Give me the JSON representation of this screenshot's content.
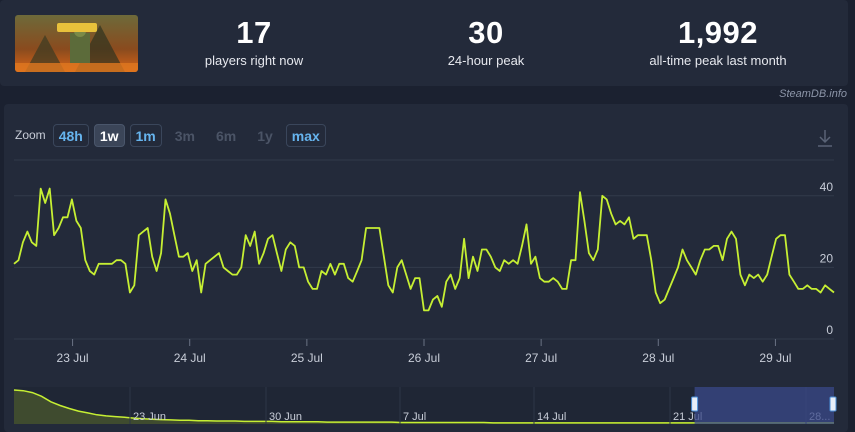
{
  "stats": [
    {
      "value": "17",
      "label": "players right now"
    },
    {
      "value": "30",
      "label": "24-hour peak"
    },
    {
      "value": "1,992",
      "label": "all-time peak last month"
    }
  ],
  "credit": "SteamDB.info",
  "zoom": {
    "label": "Zoom",
    "buttons": [
      {
        "label": "48h",
        "state": "on"
      },
      {
        "label": "1w",
        "state": "sel"
      },
      {
        "label": "1m",
        "state": "on"
      },
      {
        "label": "3m",
        "state": "off"
      },
      {
        "label": "6m",
        "state": "off"
      },
      {
        "label": "1y",
        "state": "off"
      },
      {
        "label": "max",
        "state": "on"
      }
    ]
  },
  "colors": {
    "line": "#c6ef33",
    "grid": "#323a4b",
    "navigator_selection": "#3b4a8a"
  },
  "chart_data": [
    {
      "type": "line",
      "title": "",
      "xlabel": "",
      "ylabel": "",
      "ylim": [
        0,
        50
      ],
      "yticks": [
        0,
        20,
        40
      ],
      "xlim": [
        0,
        7.0
      ],
      "x_ticks": [
        {
          "x": 0.5,
          "label": "23 Jul"
        },
        {
          "x": 1.5,
          "label": "24 Jul"
        },
        {
          "x": 2.5,
          "label": "25 Jul"
        },
        {
          "x": 3.5,
          "label": "26 Jul"
        },
        {
          "x": 4.5,
          "label": "27 Jul"
        },
        {
          "x": 5.5,
          "label": "28 Jul"
        },
        {
          "x": 6.5,
          "label": "29 Jul"
        }
      ],
      "grid": true,
      "series": [
        {
          "values": [
            21,
            22,
            27,
            30,
            27,
            26,
            42,
            38,
            42,
            29,
            31,
            34,
            34,
            39,
            33,
            31,
            22,
            19,
            18,
            21,
            21,
            21,
            21,
            22,
            22,
            21,
            13,
            15,
            29,
            30,
            31,
            23,
            19,
            24,
            39,
            35,
            29,
            23,
            23,
            24,
            19,
            22,
            13,
            21,
            22,
            23,
            24,
            20,
            19,
            18,
            18,
            20,
            29,
            26,
            30,
            21,
            24,
            28,
            29,
            24,
            19,
            25,
            27,
            26,
            20,
            20,
            16,
            14,
            14,
            19,
            18,
            21,
            18,
            21,
            21,
            17,
            16,
            19,
            22,
            31,
            31,
            31,
            31,
            23,
            15,
            13,
            20,
            22,
            18,
            14,
            17,
            17,
            8,
            8,
            11,
            12,
            9,
            16,
            18,
            14,
            17,
            28,
            17,
            23,
            19,
            25,
            25,
            23,
            20,
            19,
            22,
            21,
            22,
            21,
            26,
            32,
            21,
            23,
            17,
            16,
            16,
            17,
            16,
            14,
            14,
            22,
            22,
            41,
            33,
            24,
            22,
            25,
            40,
            39,
            35,
            32,
            33,
            32,
            34,
            28,
            29,
            29,
            29,
            22,
            13,
            10,
            11,
            14,
            17,
            20,
            25,
            22,
            20,
            18,
            22,
            25,
            25,
            26,
            26,
            22,
            28,
            30,
            28,
            18,
            15,
            18,
            17,
            18,
            16,
            18,
            23,
            28,
            29,
            29,
            18,
            16,
            14,
            14,
            15,
            14,
            14,
            13,
            15,
            14,
            13
          ]
        }
      ]
    },
    {
      "type": "area",
      "title": "navigator",
      "x_ticks": [
        {
          "label": "23 Jun"
        },
        {
          "label": "30 Jun"
        },
        {
          "label": "7 Jul"
        },
        {
          "label": "14 Jul"
        },
        {
          "label": "21 Jul"
        },
        {
          "label": "28..."
        }
      ],
      "selection": [
        0.83,
        1.0
      ],
      "values": [
        92,
        90,
        85,
        75,
        60,
        50,
        42,
        35,
        30,
        25,
        22,
        20,
        18,
        16,
        14,
        13,
        12,
        11,
        10,
        10,
        9,
        9,
        8,
        8,
        8,
        7,
        7,
        7,
        7,
        6,
        6,
        6,
        6,
        6,
        5,
        5,
        5,
        5,
        5,
        5,
        5,
        5,
        4,
        4,
        4,
        4,
        4,
        4,
        4,
        4,
        4,
        4,
        3,
        3,
        3,
        3,
        3,
        3,
        3,
        3,
        3,
        3,
        3,
        3,
        3,
        3,
        3,
        3,
        3,
        3,
        3,
        3,
        3,
        3,
        3,
        3,
        3,
        3,
        3,
        3,
        3,
        3,
        3,
        3,
        3,
        3,
        3,
        3,
        3,
        3
      ]
    }
  ]
}
